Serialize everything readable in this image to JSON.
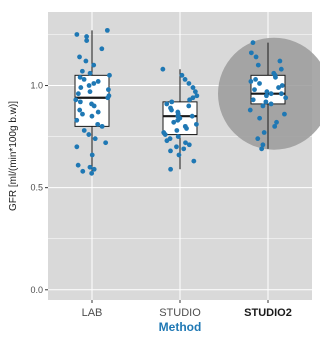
{
  "chart_data": {
    "type": "box",
    "categories": [
      "LAB",
      "STUDIO",
      "STUDIO2"
    ],
    "highlighted_category": "STUDIO2",
    "xlabel": "Method",
    "ylabel": "GFR [ml/(min*100g b.w)]",
    "ylim": [
      -0.05,
      1.36
    ],
    "yticks": [
      0.0,
      0.5,
      1.0
    ],
    "ytick_labels": [
      "0.0",
      "0.5",
      "1.0"
    ],
    "grid": true,
    "boxes": [
      {
        "name": "LAB",
        "whisker_low": 0.57,
        "q1": 0.8,
        "median": 0.94,
        "q3": 1.05,
        "whisker_high": 1.27
      },
      {
        "name": "STUDIO",
        "whisker_low": 0.59,
        "q1": 0.76,
        "median": 0.85,
        "q3": 0.92,
        "whisker_high": 1.08
      },
      {
        "name": "STUDIO2",
        "whisker_low": 0.69,
        "q1": 0.91,
        "median": 0.96,
        "q3": 1.05,
        "whisker_high": 1.21
      }
    ],
    "points": [
      [
        0.57,
        0.59,
        0.61,
        0.58,
        0.6,
        0.66,
        0.7,
        0.72,
        0.74,
        0.76,
        0.78,
        0.8,
        0.81,
        0.83,
        0.85,
        0.86,
        0.87,
        0.88,
        0.9,
        0.91,
        0.92,
        0.93,
        0.94,
        0.95,
        0.96,
        0.97,
        0.98,
        0.99,
        1.0,
        1.01,
        1.02,
        1.03,
        1.04,
        1.05,
        1.06,
        1.07,
        1.1,
        1.12,
        1.14,
        1.18,
        1.22,
        1.24,
        1.25,
        1.27
      ],
      [
        0.59,
        0.63,
        0.66,
        0.68,
        0.69,
        0.7,
        0.71,
        0.72,
        0.73,
        0.74,
        0.75,
        0.76,
        0.77,
        0.78,
        0.79,
        0.8,
        0.81,
        0.82,
        0.83,
        0.84,
        0.85,
        0.85,
        0.86,
        0.87,
        0.88,
        0.89,
        0.9,
        0.91,
        0.92,
        0.93,
        0.94,
        0.95,
        0.97,
        0.99,
        1.01,
        1.03,
        1.05,
        1.08
      ],
      [
        0.69,
        0.71,
        0.74,
        0.77,
        0.8,
        0.82,
        0.84,
        0.86,
        0.88,
        0.9,
        0.91,
        0.92,
        0.93,
        0.94,
        0.95,
        0.96,
        0.96,
        0.97,
        0.98,
        0.99,
        1.0,
        1.01,
        1.02,
        1.03,
        1.04,
        1.05,
        1.06,
        1.08,
        1.1,
        1.12,
        1.14,
        1.16,
        1.21
      ]
    ],
    "colors": {
      "panel_background": "#d9d9d9",
      "grid": "#ffffff",
      "point": "#1f78b4",
      "box_fill": "#ffffff",
      "box_stroke": "#1a1a1a",
      "highlight_circle": "#9a9a9a",
      "xlabel_color": "#1f78b4"
    }
  }
}
